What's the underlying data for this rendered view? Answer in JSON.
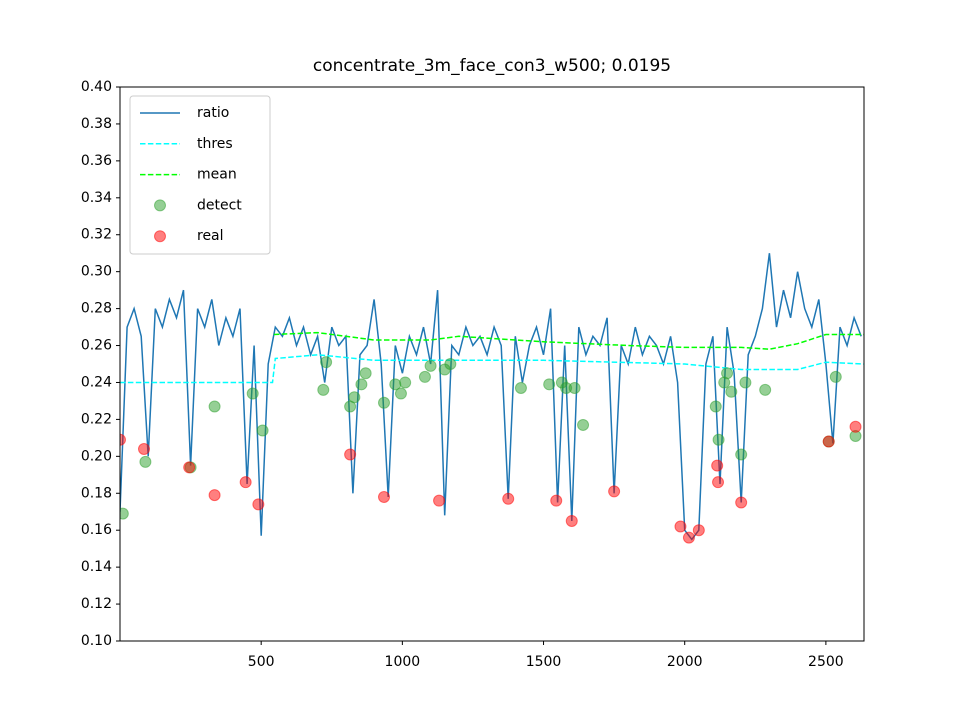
{
  "chart_data": {
    "type": "line",
    "title": "concentrate_3m_face_con3_w500; 0.0195",
    "xlim": [
      0,
      2635
    ],
    "ylim": [
      0.1,
      0.4
    ],
    "xticks": [
      500,
      1000,
      1500,
      2000,
      2500
    ],
    "yticks": [
      {
        "value": 0.1,
        "label": "0.10"
      },
      0.12,
      0.14,
      0.16,
      0.18,
      {
        "value": 0.2,
        "label": "0.20"
      },
      0.22,
      0.24,
      0.26,
      0.28,
      {
        "value": 0.3,
        "label": "0.30"
      },
      0.32,
      0.34,
      0.36,
      0.38,
      {
        "value": 0.4,
        "label": "0.40"
      }
    ],
    "grid": false,
    "legend": "upper left",
    "series": [
      {
        "name": "ratio",
        "kind": "line",
        "style": "solid",
        "color": "#1f77b4",
        "x": [
          0,
          25,
          50,
          75,
          100,
          125,
          150,
          175,
          200,
          225,
          250,
          275,
          300,
          325,
          350,
          375,
          400,
          425,
          450,
          475,
          500,
          525,
          550,
          575,
          600,
          625,
          650,
          675,
          700,
          725,
          750,
          775,
          800,
          825,
          850,
          875,
          900,
          925,
          950,
          975,
          1000,
          1025,
          1050,
          1075,
          1100,
          1125,
          1150,
          1175,
          1200,
          1225,
          1250,
          1275,
          1300,
          1325,
          1350,
          1375,
          1400,
          1425,
          1450,
          1475,
          1500,
          1525,
          1550,
          1575,
          1600,
          1625,
          1650,
          1675,
          1700,
          1725,
          1750,
          1775,
          1800,
          1825,
          1850,
          1875,
          1900,
          1925,
          1950,
          1975,
          2000,
          2025,
          2050,
          2075,
          2100,
          2125,
          2150,
          2175,
          2200,
          2225,
          2250,
          2275,
          2300,
          2325,
          2350,
          2375,
          2400,
          2425,
          2450,
          2475,
          2500,
          2525,
          2550,
          2575,
          2600,
          2625
        ],
        "values": [
          0.17,
          0.27,
          0.28,
          0.265,
          0.2,
          0.28,
          0.27,
          0.285,
          0.275,
          0.29,
          0.195,
          0.28,
          0.27,
          0.285,
          0.26,
          0.275,
          0.265,
          0.28,
          0.185,
          0.26,
          0.157,
          0.25,
          0.27,
          0.265,
          0.275,
          0.26,
          0.27,
          0.255,
          0.265,
          0.24,
          0.27,
          0.26,
          0.265,
          0.18,
          0.255,
          0.26,
          0.285,
          0.25,
          0.178,
          0.26,
          0.245,
          0.265,
          0.255,
          0.27,
          0.25,
          0.29,
          0.168,
          0.26,
          0.255,
          0.27,
          0.26,
          0.265,
          0.255,
          0.27,
          0.26,
          0.177,
          0.265,
          0.24,
          0.26,
          0.27,
          0.255,
          0.28,
          0.175,
          0.26,
          0.165,
          0.27,
          0.255,
          0.265,
          0.26,
          0.275,
          0.18,
          0.26,
          0.25,
          0.27,
          0.255,
          0.265,
          0.26,
          0.25,
          0.265,
          0.24,
          0.16,
          0.155,
          0.16,
          0.25,
          0.265,
          0.185,
          0.27,
          0.245,
          0.175,
          0.255,
          0.265,
          0.28,
          0.31,
          0.27,
          0.29,
          0.275,
          0.3,
          0.28,
          0.27,
          0.285,
          0.25,
          0.207,
          0.27,
          0.26,
          0.275,
          0.265
        ]
      },
      {
        "name": "thres",
        "kind": "line",
        "style": "dashed",
        "color": "#00ffff",
        "x": [
          0,
          540,
          550,
          700,
          900,
          1500,
          2000,
          2200,
          2400,
          2500,
          2635
        ],
        "values": [
          0.24,
          0.24,
          0.253,
          0.255,
          0.252,
          0.252,
          0.25,
          0.247,
          0.247,
          0.251,
          0.25
        ]
      },
      {
        "name": "mean",
        "kind": "line",
        "style": "dashed",
        "color": "#00ff00",
        "x": [
          545,
          700,
          900,
          1100,
          1200,
          1500,
          1800,
          2000,
          2200,
          2300,
          2400,
          2500,
          2635
        ],
        "values": [
          0.266,
          0.267,
          0.263,
          0.263,
          0.265,
          0.262,
          0.26,
          0.259,
          0.259,
          0.258,
          0.261,
          0.266,
          0.266
        ]
      },
      {
        "name": "detect",
        "kind": "scatter",
        "color": "#2ca02c",
        "x": [
          10,
          90,
          250,
          335,
          470,
          505,
          720,
          730,
          815,
          830,
          855,
          870,
          935,
          975,
          995,
          1010,
          1080,
          1100,
          1150,
          1170,
          1420,
          1520,
          1565,
          1580,
          1610,
          1640,
          2110,
          2120,
          2140,
          2150,
          2165,
          2200,
          2215,
          2285,
          2510,
          2535,
          2605
        ],
        "values": [
          0.169,
          0.197,
          0.194,
          0.227,
          0.234,
          0.214,
          0.236,
          0.251,
          0.227,
          0.232,
          0.239,
          0.245,
          0.229,
          0.239,
          0.234,
          0.24,
          0.243,
          0.249,
          0.247,
          0.25,
          0.237,
          0.239,
          0.24,
          0.237,
          0.237,
          0.217,
          0.227,
          0.209,
          0.24,
          0.245,
          0.235,
          0.201,
          0.24,
          0.236,
          0.208,
          0.243,
          0.211
        ]
      },
      {
        "name": "real",
        "kind": "scatter",
        "color": "#ff0000",
        "x": [
          0,
          85,
          245,
          335,
          445,
          490,
          815,
          935,
          1130,
          1375,
          1545,
          1600,
          1750,
          1985,
          2015,
          2050,
          2115,
          2118,
          2200,
          2510,
          2605
        ],
        "values": [
          0.209,
          0.204,
          0.194,
          0.179,
          0.186,
          0.174,
          0.201,
          0.178,
          0.176,
          0.177,
          0.176,
          0.165,
          0.181,
          0.162,
          0.156,
          0.16,
          0.195,
          0.186,
          0.175,
          0.208,
          0.216
        ]
      }
    ]
  }
}
